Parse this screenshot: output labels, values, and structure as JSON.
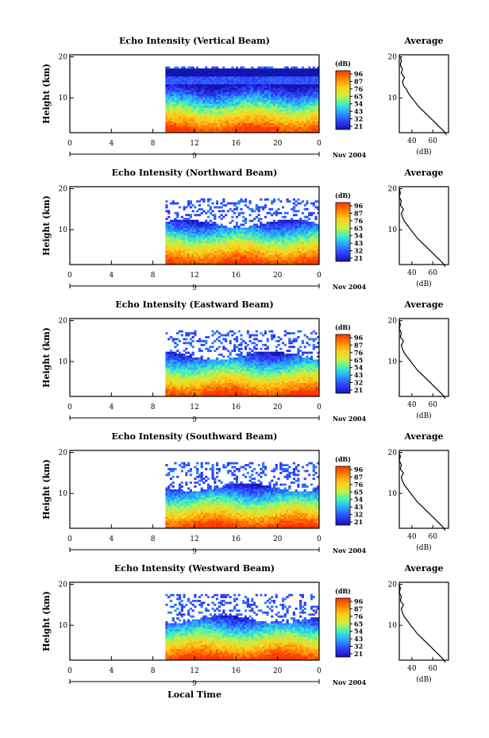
{
  "chart_data": {
    "type": "heatmap",
    "panels": [
      {
        "title": "Echo Intensity (Vertical Beam)",
        "average_title": "Average",
        "avg_xticks": [
          "40",
          "60"
        ],
        "avg_xlabel": "(dB)",
        "avg_profile": [
          [
            73,
            1
          ],
          [
            70,
            2
          ],
          [
            66,
            3
          ],
          [
            62,
            4
          ],
          [
            58,
            5
          ],
          [
            54,
            6
          ],
          [
            50,
            7
          ],
          [
            46,
            8
          ],
          [
            43,
            9
          ],
          [
            40,
            10
          ],
          [
            37,
            11
          ],
          [
            35,
            12
          ],
          [
            32,
            13
          ],
          [
            31,
            14
          ],
          [
            33,
            15
          ],
          [
            30,
            16
          ],
          [
            31,
            17
          ],
          [
            29,
            18
          ],
          [
            30,
            19
          ],
          [
            29,
            20
          ]
        ]
      },
      {
        "title": "Echo Intensity (Northward Beam)",
        "average_title": "Average",
        "avg_xticks": [
          "40",
          "60"
        ],
        "avg_xlabel": "(dB)",
        "avg_profile": [
          [
            72,
            1
          ],
          [
            69,
            2
          ],
          [
            65,
            3
          ],
          [
            61,
            4
          ],
          [
            57,
            5
          ],
          [
            53,
            6
          ],
          [
            49,
            7
          ],
          [
            45,
            8
          ],
          [
            42,
            9
          ],
          [
            39,
            10
          ],
          [
            36,
            11
          ],
          [
            33,
            12
          ],
          [
            31,
            13
          ],
          [
            30,
            14
          ],
          [
            32,
            15
          ],
          [
            29,
            16
          ],
          [
            30,
            17
          ],
          [
            28,
            18
          ],
          [
            29,
            19
          ],
          [
            28,
            20
          ]
        ]
      },
      {
        "title": "Echo Intensity (Eastward Beam)",
        "average_title": "Average",
        "avg_xticks": [
          "40",
          "60"
        ],
        "avg_xlabel": "(dB)",
        "avg_profile": [
          [
            72,
            1
          ],
          [
            69,
            2
          ],
          [
            65,
            3
          ],
          [
            61,
            4
          ],
          [
            57,
            5
          ],
          [
            53,
            6
          ],
          [
            49,
            7
          ],
          [
            45,
            8
          ],
          [
            42,
            9
          ],
          [
            39,
            10
          ],
          [
            36,
            11
          ],
          [
            33,
            12
          ],
          [
            31,
            13
          ],
          [
            30,
            14
          ],
          [
            32,
            15
          ],
          [
            29,
            16
          ],
          [
            30,
            17
          ],
          [
            28,
            18
          ],
          [
            29,
            19
          ],
          [
            28,
            20
          ]
        ]
      },
      {
        "title": "Echo Intensity (Southward Beam)",
        "average_title": "Average",
        "avg_xticks": [
          "40",
          "60"
        ],
        "avg_xlabel": "(dB)",
        "avg_profile": [
          [
            72,
            1
          ],
          [
            69,
            2
          ],
          [
            65,
            3
          ],
          [
            61,
            4
          ],
          [
            57,
            5
          ],
          [
            53,
            6
          ],
          [
            49,
            7
          ],
          [
            45,
            8
          ],
          [
            42,
            9
          ],
          [
            39,
            10
          ],
          [
            36,
            11
          ],
          [
            33,
            12
          ],
          [
            31,
            13
          ],
          [
            30,
            14
          ],
          [
            32,
            15
          ],
          [
            29,
            16
          ],
          [
            30,
            17
          ],
          [
            28,
            18
          ],
          [
            29,
            19
          ],
          [
            28,
            20
          ]
        ]
      },
      {
        "title": "Echo Intensity (Westward Beam)",
        "average_title": "Average",
        "avg_xticks": [
          "40",
          "60"
        ],
        "avg_xlabel": "(dB)",
        "avg_profile": [
          [
            72,
            1
          ],
          [
            69,
            2
          ],
          [
            65,
            3
          ],
          [
            61,
            4
          ],
          [
            57,
            5
          ],
          [
            53,
            6
          ],
          [
            49,
            7
          ],
          [
            45,
            8
          ],
          [
            42,
            9
          ],
          [
            39,
            10
          ],
          [
            36,
            11
          ],
          [
            33,
            12
          ],
          [
            31,
            13
          ],
          [
            30,
            14
          ],
          [
            32,
            15
          ],
          [
            29,
            16
          ],
          [
            30,
            17
          ],
          [
            28,
            18
          ],
          [
            29,
            19
          ],
          [
            28,
            20
          ]
        ]
      }
    ],
    "ylabel": "Height (km)",
    "yticks": [
      "20",
      "10"
    ],
    "xticks": [
      "0",
      "4",
      "8",
      "12",
      "16",
      "20",
      "0"
    ],
    "date_tick": "9",
    "date_label": "Nov 2004",
    "xlabel": "Local Time",
    "colorbar_unit": "(dB)",
    "colorbar_ticks": [
      "96",
      "87",
      "76",
      "65",
      "54",
      "43",
      "32",
      "21"
    ],
    "colorbar_colors": [
      "#ff3300",
      "#ff8800",
      "#ffd020",
      "#c8f03c",
      "#3cf0c8",
      "#2aa0ff",
      "#3040ff",
      "#1414b0"
    ],
    "data_start_hour": 9.2,
    "time_range_hours": [
      0,
      24
    ],
    "height_range_km": [
      1.5,
      20.5
    ]
  }
}
